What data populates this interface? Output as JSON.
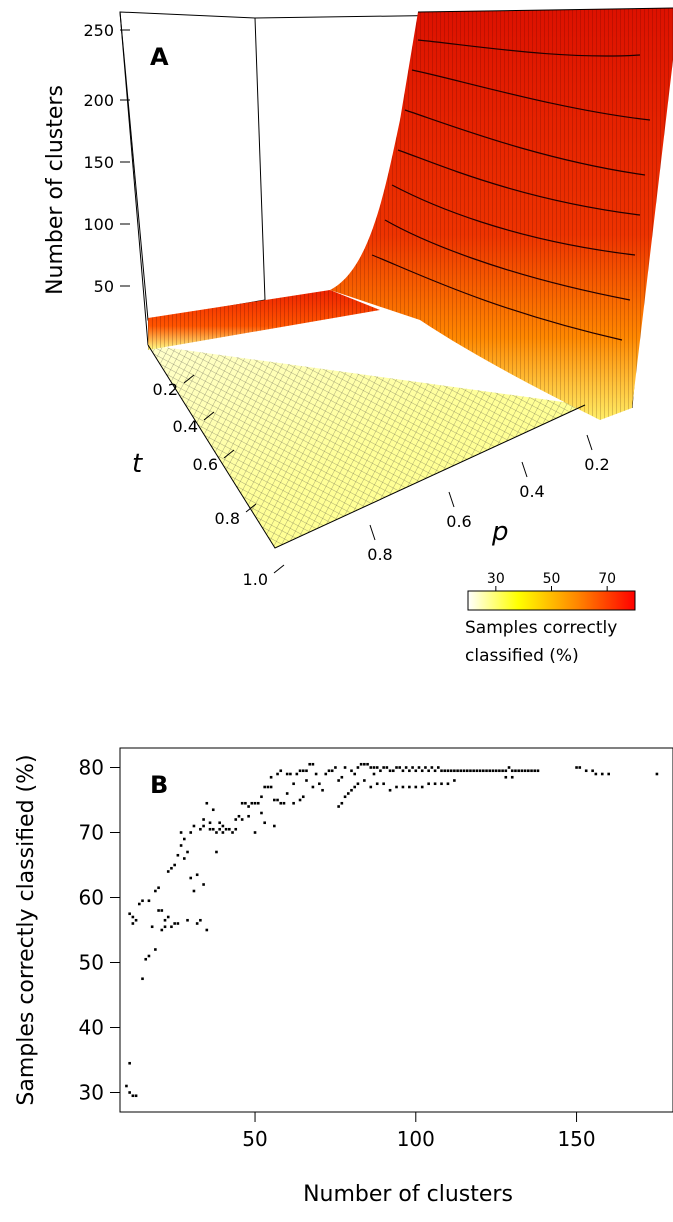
{
  "chart_data": [
    {
      "type": "surface3d",
      "panel_label": "A",
      "zlabel": "Number of clusters",
      "z_ticks": [
        "50",
        "100",
        "150",
        "200",
        "250"
      ],
      "t_axis_label": "t",
      "t_ticks": [
        "0.2",
        "0.4",
        "0.6",
        "0.8",
        "1.0"
      ],
      "p_axis_label": "p",
      "p_ticks": [
        "0.2",
        "0.4",
        "0.6",
        "0.8"
      ],
      "z_range": [
        10,
        260
      ],
      "colorbar": {
        "title_line1": "Samples correctly",
        "title_line2": "classified (%)",
        "ticks": [
          "30",
          "50",
          "70"
        ],
        "range": [
          20,
          80
        ],
        "colors": [
          "#ffffff",
          "#ffff00",
          "#ff9900",
          "#ff0000"
        ]
      }
    },
    {
      "type": "scatter",
      "panel_label": "B",
      "xlabel": "Number of clusters",
      "ylabel": "Samples correctly classified (%)",
      "xlim": [
        8,
        180
      ],
      "ylim": [
        27,
        83
      ],
      "x_ticks": [
        "50",
        "100",
        "150"
      ],
      "y_ticks": [
        "30",
        "40",
        "50",
        "60",
        "70",
        "80"
      ],
      "points": [
        [
          10,
          31
        ],
        [
          11,
          34.5
        ],
        [
          11,
          30
        ],
        [
          12,
          29.5
        ],
        [
          13,
          29.5
        ],
        [
          11,
          57.5
        ],
        [
          12,
          56
        ],
        [
          12,
          57
        ],
        [
          13,
          56.5
        ],
        [
          14,
          59
        ],
        [
          15,
          59.5
        ],
        [
          15,
          47.5
        ],
        [
          16,
          50.5
        ],
        [
          17,
          51
        ],
        [
          17,
          59.5
        ],
        [
          18,
          55.5
        ],
        [
          19,
          52
        ],
        [
          19,
          61
        ],
        [
          20,
          58
        ],
        [
          20,
          61.5
        ],
        [
          21,
          55
        ],
        [
          21,
          58
        ],
        [
          22,
          56.5
        ],
        [
          22,
          55.5
        ],
        [
          23,
          57
        ],
        [
          23,
          64
        ],
        [
          24,
          55.5
        ],
        [
          24,
          64.5
        ],
        [
          25,
          56
        ],
        [
          25,
          65
        ],
        [
          26,
          66.5
        ],
        [
          26,
          56
        ],
        [
          27,
          68
        ],
        [
          27,
          70
        ],
        [
          28,
          69
        ],
        [
          28,
          66
        ],
        [
          29,
          56.5
        ],
        [
          29,
          67
        ],
        [
          30,
          63
        ],
        [
          30,
          70
        ],
        [
          31,
          61
        ],
        [
          31,
          71
        ],
        [
          32,
          56
        ],
        [
          32,
          63.5
        ],
        [
          33,
          70.5
        ],
        [
          33,
          56.5
        ],
        [
          34,
          71
        ],
        [
          34,
          72
        ],
        [
          34,
          62
        ],
        [
          35,
          74.5
        ],
        [
          35,
          55
        ],
        [
          36,
          71.5
        ],
        [
          36,
          70.5
        ],
        [
          37,
          73.5
        ],
        [
          37,
          70.5
        ],
        [
          38,
          67
        ],
        [
          38,
          70
        ],
        [
          39,
          71.5
        ],
        [
          39,
          70.5
        ],
        [
          40,
          71
        ],
        [
          40,
          70
        ],
        [
          41,
          70.5
        ],
        [
          42,
          70.5
        ],
        [
          43,
          70
        ],
        [
          44,
          72
        ],
        [
          44,
          70.5
        ],
        [
          45,
          72.5
        ],
        [
          46,
          74.5
        ],
        [
          46,
          72
        ],
        [
          47,
          74.5
        ],
        [
          48,
          74
        ],
        [
          48,
          72.5
        ],
        [
          49,
          74.5
        ],
        [
          50,
          70
        ],
        [
          50,
          74.5
        ],
        [
          51,
          74.5
        ],
        [
          52,
          73
        ],
        [
          52,
          75.5
        ],
        [
          53,
          77
        ],
        [
          53,
          71.5
        ],
        [
          54,
          77
        ],
        [
          55,
          78.5
        ],
        [
          55,
          77
        ],
        [
          56,
          75
        ],
        [
          56,
          71
        ],
        [
          57,
          75
        ],
        [
          57,
          79
        ],
        [
          58,
          74.5
        ],
        [
          58,
          79.5
        ],
        [
          59,
          74.5
        ],
        [
          60,
          76
        ],
        [
          60,
          79
        ],
        [
          61,
          79
        ],
        [
          62,
          74.5
        ],
        [
          62,
          77.5
        ],
        [
          63,
          79
        ],
        [
          64,
          79.5
        ],
        [
          64,
          75
        ],
        [
          65,
          75.5
        ],
        [
          65,
          79.5
        ],
        [
          66,
          78
        ],
        [
          66,
          79.5
        ],
        [
          67,
          80.5
        ],
        [
          68,
          77
        ],
        [
          68,
          80.5
        ],
        [
          69,
          79
        ],
        [
          70,
          77.5
        ],
        [
          71,
          76.5
        ],
        [
          72,
          79
        ],
        [
          73,
          79.5
        ],
        [
          74,
          79.5
        ],
        [
          75,
          80
        ],
        [
          76,
          74
        ],
        [
          76,
          78
        ],
        [
          77,
          74.5
        ],
        [
          77,
          78.5
        ],
        [
          78,
          75.5
        ],
        [
          78,
          80
        ],
        [
          79,
          76
        ],
        [
          80,
          76.5
        ],
        [
          80,
          79.5
        ],
        [
          81,
          77
        ],
        [
          81,
          79
        ],
        [
          82,
          77.5
        ],
        [
          82,
          80
        ],
        [
          83,
          80.5
        ],
        [
          84,
          80.5
        ],
        [
          84,
          78
        ],
        [
          85,
          80.5
        ],
        [
          86,
          80
        ],
        [
          86,
          77
        ],
        [
          87,
          80
        ],
        [
          87,
          79
        ],
        [
          88,
          80
        ],
        [
          88,
          77.5
        ],
        [
          89,
          79.5
        ],
        [
          90,
          80
        ],
        [
          90,
          77.5
        ],
        [
          91,
          80
        ],
        [
          92,
          79.5
        ],
        [
          92,
          76.5
        ],
        [
          93,
          79.5
        ],
        [
          94,
          80
        ],
        [
          94,
          77
        ],
        [
          95,
          80
        ],
        [
          96,
          79.5
        ],
        [
          96,
          77
        ],
        [
          97,
          80
        ],
        [
          98,
          79.5
        ],
        [
          98,
          77
        ],
        [
          99,
          80
        ],
        [
          100,
          79.5
        ],
        [
          100,
          77
        ],
        [
          101,
          80
        ],
        [
          102,
          79.5
        ],
        [
          102,
          77
        ],
        [
          103,
          80
        ],
        [
          104,
          79.5
        ],
        [
          104,
          77.5
        ],
        [
          105,
          80
        ],
        [
          106,
          79.5
        ],
        [
          106,
          77.5
        ],
        [
          107,
          80
        ],
        [
          108,
          79.5
        ],
        [
          108,
          77.5
        ],
        [
          109,
          79.5
        ],
        [
          110,
          79.5
        ],
        [
          110,
          77.5
        ],
        [
          111,
          79.5
        ],
        [
          112,
          79.5
        ],
        [
          112,
          78
        ],
        [
          113,
          79.5
        ],
        [
          114,
          79.5
        ],
        [
          115,
          79.5
        ],
        [
          116,
          79.5
        ],
        [
          117,
          79.5
        ],
        [
          118,
          79.5
        ],
        [
          119,
          79.5
        ],
        [
          120,
          79.5
        ],
        [
          121,
          79.5
        ],
        [
          122,
          79.5
        ],
        [
          123,
          79.5
        ],
        [
          124,
          79.5
        ],
        [
          125,
          79.5
        ],
        [
          126,
          79.5
        ],
        [
          127,
          79.5
        ],
        [
          128,
          79.5
        ],
        [
          128,
          78.5
        ],
        [
          129,
          80
        ],
        [
          130,
          79.5
        ],
        [
          130,
          78.5
        ],
        [
          131,
          79.5
        ],
        [
          132,
          79.5
        ],
        [
          133,
          79.5
        ],
        [
          134,
          79.5
        ],
        [
          135,
          79.5
        ],
        [
          136,
          79.5
        ],
        [
          137,
          79.5
        ],
        [
          138,
          79.5
        ],
        [
          150,
          80
        ],
        [
          151,
          80
        ],
        [
          153,
          79.5
        ],
        [
          155,
          79.5
        ],
        [
          156,
          79
        ],
        [
          158,
          79
        ],
        [
          160,
          79
        ],
        [
          175,
          79
        ]
      ]
    }
  ]
}
